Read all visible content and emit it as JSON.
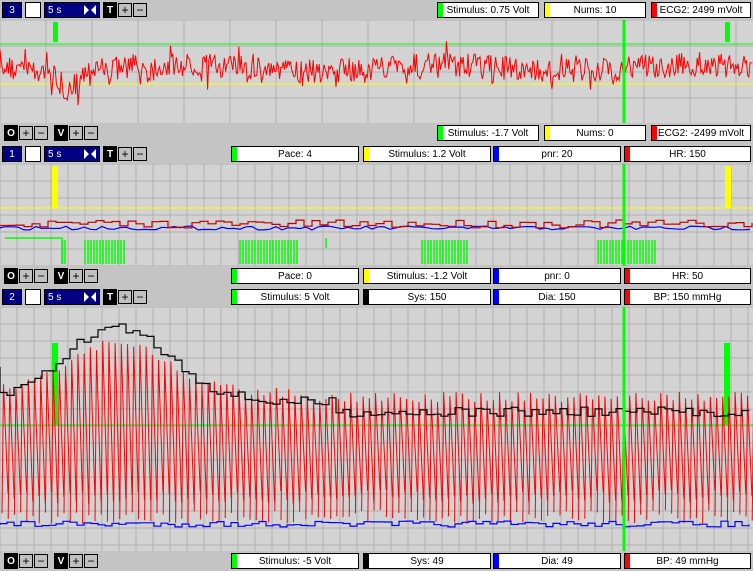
{
  "colors": {
    "green": "#00ff00",
    "red": "#ff0000",
    "blue": "#0000ff",
    "yellow": "#ffff00",
    "black": "#000000",
    "navy": "#000080"
  },
  "icons": {
    "zoom": "expand-arrows-icon",
    "plus": "+",
    "minus": "−"
  },
  "panels": [
    {
      "id": "3",
      "duration": "5 s",
      "top_fields": [
        {
          "label": "Stimulus: 0.75 Volt",
          "color": "#00ff00"
        },
        {
          "label": "Nums: 10",
          "color": "#ffff00"
        },
        {
          "label": "ECG2: 2499 mVolt",
          "color": "#ff0000"
        }
      ],
      "bottom_fields": [
        {
          "label": "Stimulus: -1.7 Volt",
          "color": "#00ff00"
        },
        {
          "label": "Nums: 0",
          "color": "#ffff00"
        },
        {
          "label": "ECG2: -2499 mVolt",
          "color": "#ff0000"
        }
      ]
    },
    {
      "id": "1",
      "duration": "5 s",
      "top_fields": [
        {
          "label": "Pace: 4",
          "color": "#00ff00"
        },
        {
          "label": "Stimulus: 1.2 Volt",
          "color": "#ffff00"
        },
        {
          "label": "pnr: 20",
          "color": "#0000ff"
        },
        {
          "label": "HR: 150",
          "color": "#ff0000"
        }
      ],
      "bottom_fields": [
        {
          "label": "Pace: 0",
          "color": "#00ff00"
        },
        {
          "label": "Stimulus: -1.2 Volt",
          "color": "#ffff00"
        },
        {
          "label": "pnr: 0",
          "color": "#0000ff"
        },
        {
          "label": "HR: 50",
          "color": "#ff0000"
        }
      ]
    },
    {
      "id": "2",
      "duration": "5 s",
      "top_fields": [
        {
          "label": "Stimulus: 5 Volt",
          "color": "#00ff00"
        },
        {
          "label": "Sys: 150",
          "color": "#000000"
        },
        {
          "label": "Dia: 150",
          "color": "#0000ff"
        },
        {
          "label": "BP: 150 mmHg",
          "color": "#ff0000"
        }
      ],
      "bottom_fields": [
        {
          "label": "Stimulus: -5 Volt",
          "color": "#00ff00"
        },
        {
          "label": "Sys: 49",
          "color": "#000000"
        },
        {
          "label": "Dia: 49",
          "color": "#0000ff"
        },
        {
          "label": "BP: 49 mmHg",
          "color": "#ff0000"
        }
      ]
    }
  ],
  "bottom_controls": {
    "offset_label": "O",
    "volt_label": "V"
  },
  "top_controls": {
    "time_label": "T"
  }
}
